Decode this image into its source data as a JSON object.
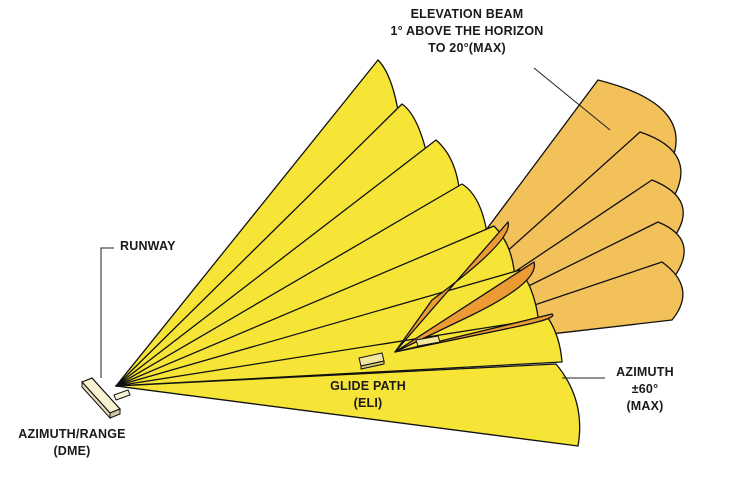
{
  "labels": {
    "elevation_line1": "ELEVATION BEAM",
    "elevation_line2": "1° ABOVE THE HORIZON",
    "elevation_line3": "TO 20°(MAX)",
    "runway": "RUNWAY",
    "glide_path_line1": "GLIDE PATH",
    "glide_path_line2": "(ELI)",
    "azimuth_line1": "AZIMUTH",
    "azimuth_line2": "±60°",
    "azimuth_line3": "(MAX)",
    "azimuth_range_line1": "AZIMUTH/RANGE",
    "azimuth_range_line2": "(DME)"
  },
  "colors": {
    "azimuth_fan": "#f6e537",
    "elevation_fan": "#f2c15a",
    "elevation_overlap": "#ec9a33",
    "outline": "#111111",
    "leader": "#222222"
  }
}
